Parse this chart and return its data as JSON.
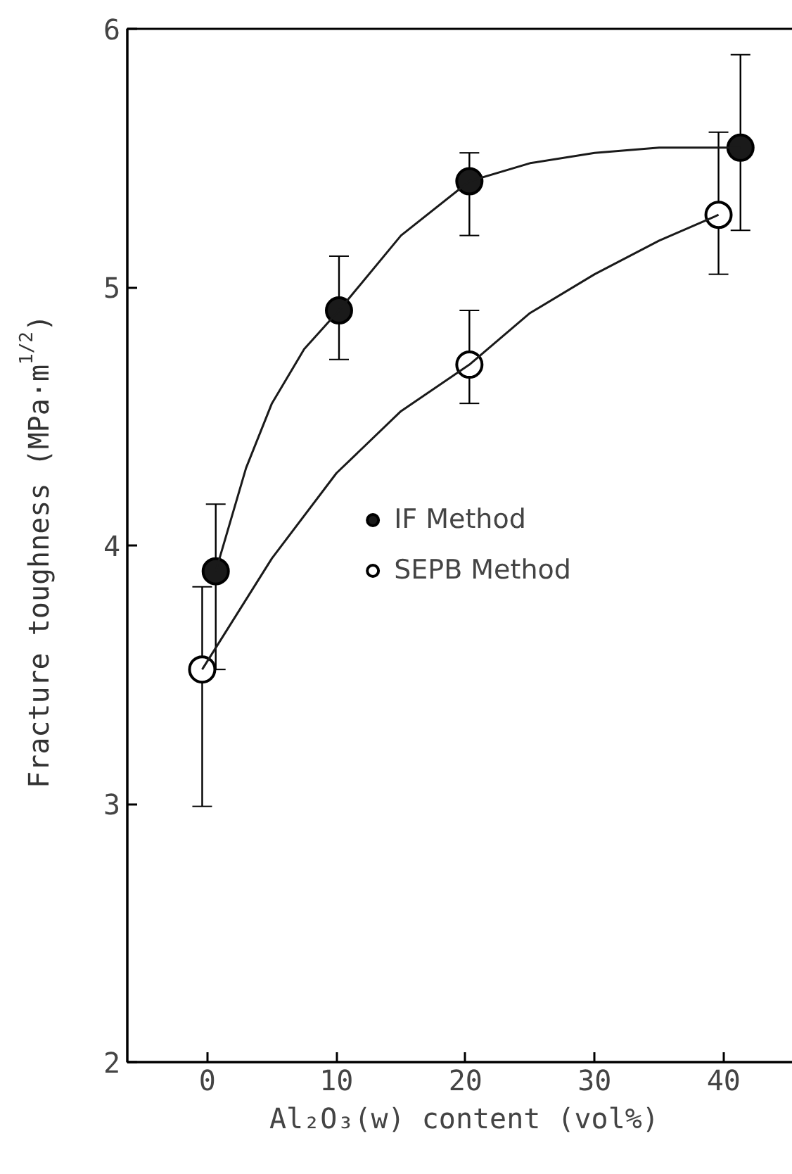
{
  "chart_data": {
    "type": "scatter",
    "xlabel": "Al₂O₃(w) content (vol%)",
    "ylabel": "Fracture toughness (MPa·m$^{1/2}$)",
    "xlim": [
      -6.2,
      46
    ],
    "xticks": [
      0,
      10,
      20,
      30,
      40
    ],
    "ylim": [
      2,
      6
    ],
    "yticks": [
      2,
      3,
      4,
      5,
      6
    ],
    "grid": false,
    "legend": "center",
    "marker": "circle",
    "series": [
      {
        "name": "IF Method",
        "color": "#1a1a1a",
        "x": [
          0.65,
          10.2,
          20.3,
          41.3
        ],
        "values": [
          3.9,
          4.91,
          5.41,
          5.54
        ],
        "errors": [
          [
            3.52,
            4.16
          ],
          [
            4.72,
            5.12
          ],
          [
            5.2,
            5.52
          ],
          [
            5.22,
            5.9
          ]
        ]
      },
      {
        "name": "SEPB Method",
        "color": "#ffffff",
        "x": [
          -0.4,
          20.3,
          39.6
        ],
        "values": [
          3.52,
          4.7,
          5.28
        ],
        "errors": [
          [
            2.99,
            3.84
          ],
          [
            4.55,
            4.91
          ],
          [
            5.05,
            5.6
          ]
        ]
      },
      {
        "type": "line",
        "marker": "none",
        "color": "#1a1a1a",
        "x": [
          0.65,
          3,
          5,
          7.5,
          10.2,
          15,
          20.3,
          25,
          30,
          35,
          41.3
        ],
        "values": [
          3.9,
          4.3,
          4.55,
          4.76,
          4.91,
          5.2,
          5.41,
          5.48,
          5.52,
          5.54,
          5.54
        ]
      },
      {
        "type": "line",
        "marker": "none",
        "color": "#1a1a1a",
        "x": [
          -0.4,
          5,
          10,
          15,
          20.3,
          25,
          30,
          35,
          39.6
        ],
        "values": [
          3.52,
          3.95,
          4.28,
          4.52,
          4.7,
          4.9,
          5.05,
          5.18,
          5.28
        ]
      }
    ]
  }
}
